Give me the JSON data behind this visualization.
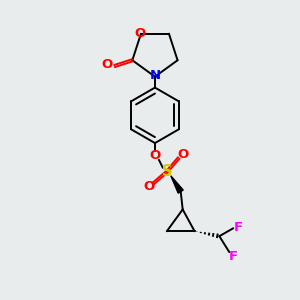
{
  "background_color": "#e8ecec",
  "atom_colors": {
    "O": "#ff0000",
    "N": "#0000ff",
    "S": "#cccc00",
    "F": "#ff00ff",
    "C": "#000000"
  },
  "bond_color": "#000000",
  "figsize": [
    3.0,
    3.0
  ],
  "dpi": 100,
  "lw": 1.4,
  "fs": 9.5
}
